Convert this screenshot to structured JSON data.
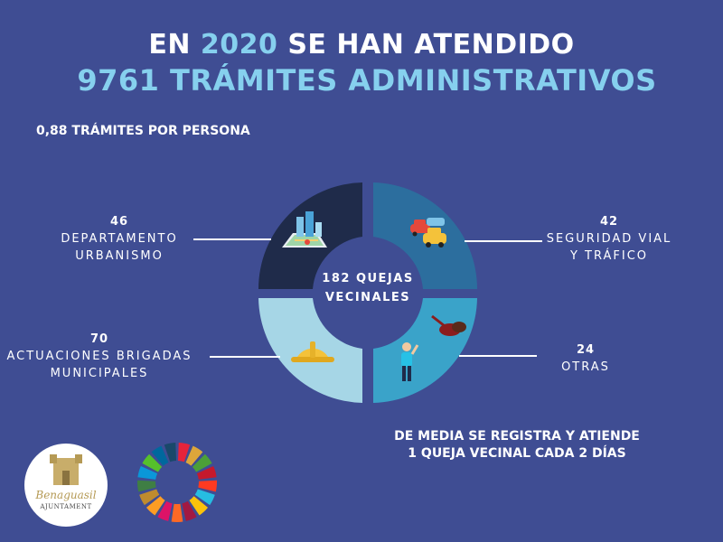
{
  "header": {
    "title_part1": "EN ",
    "title_year": "2020",
    "title_part2": " SE HAN ATENDIDO",
    "subtitle": "9761 TRÁMITES ADMINISTRATIVOS"
  },
  "per_person": "0,88 TRÁMITES POR PERSONA",
  "center": {
    "label": "182 QUEJAS\nVECINALES"
  },
  "categories": [
    {
      "value": "46",
      "label": "DEPARTAMENTO\nURBANISMO",
      "color": "#1f2b4a",
      "icon": "city-map-icon"
    },
    {
      "value": "42",
      "label": "SEGURIDAD VIAL\nY TRÁFICO",
      "color": "#2c6e9e",
      "icon": "cars-icon"
    },
    {
      "value": "24",
      "label": "OTRAS",
      "color": "#3aa3c9",
      "icon": "worker-cleaning-icon"
    },
    {
      "value": "70",
      "label": "ACTUACIONES BRIGADAS\nMUNICIPALES",
      "color": "#a6d6e6",
      "icon": "hard-hat-icon"
    }
  ],
  "note": "DE MEDIA SE REGISTRA Y ATIENDE\n1 QUEJA VECINAL CADA 2 DÍAS",
  "logo": {
    "script": "Benaguasil",
    "sub": "AJUNTAMENT"
  },
  "sdg_colors": [
    "#e5243b",
    "#dda63a",
    "#4c9f38",
    "#c5192d",
    "#ff3a21",
    "#26bde2",
    "#fcc30b",
    "#a21942",
    "#fd6925",
    "#dd1367",
    "#fd9d24",
    "#bf8b2e",
    "#3f7e44",
    "#0a97d9",
    "#56c02b",
    "#00689d",
    "#19486a"
  ]
}
